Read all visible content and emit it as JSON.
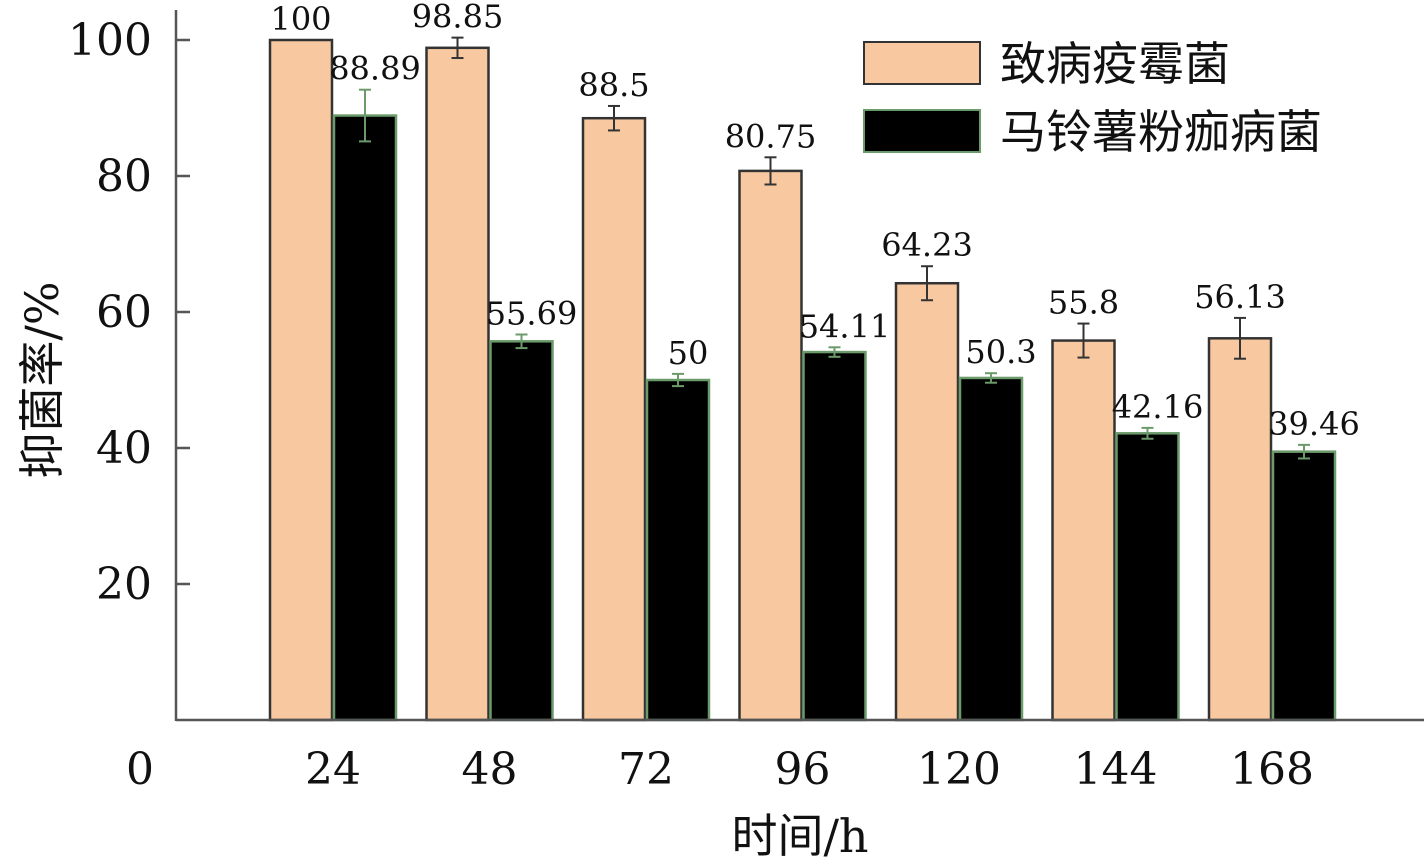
{
  "chart_data": {
    "type": "bar",
    "title": "",
    "xlabel": "时间/h",
    "ylabel": "抑菌率/%",
    "categories": [
      "24",
      "48",
      "72",
      "96",
      "120",
      "144",
      "168"
    ],
    "ylim": [
      0,
      100
    ],
    "yticks": [
      0,
      20,
      40,
      60,
      80,
      100
    ],
    "ytick_labels": [
      "0",
      "20",
      "40",
      "60",
      "80",
      "100"
    ],
    "grid": false,
    "legend_position": "top-right",
    "series": [
      {
        "name": "致病疫霉菌",
        "color": "#f8c9a1",
        "values": [
          100,
          98.85,
          88.5,
          80.75,
          64.23,
          55.8,
          56.13
        ],
        "labels": [
          "100",
          "98.85",
          "88.5",
          "80.75",
          "64.23",
          "55.8",
          "56.13"
        ],
        "errors": [
          0,
          1.5,
          1.8,
          2.0,
          2.5,
          2.5,
          3.0
        ]
      },
      {
        "name": "马铃薯粉痂病菌",
        "color": "#000000",
        "values": [
          88.89,
          55.69,
          50,
          54.11,
          50.3,
          42.16,
          39.46
        ],
        "labels": [
          "88.89",
          "55.69",
          "50",
          "54.11",
          "50.3",
          "42.16",
          "39.46"
        ],
        "errors": [
          3.8,
          1.0,
          0.9,
          0.7,
          0.7,
          0.8,
          1.0
        ]
      }
    ]
  }
}
